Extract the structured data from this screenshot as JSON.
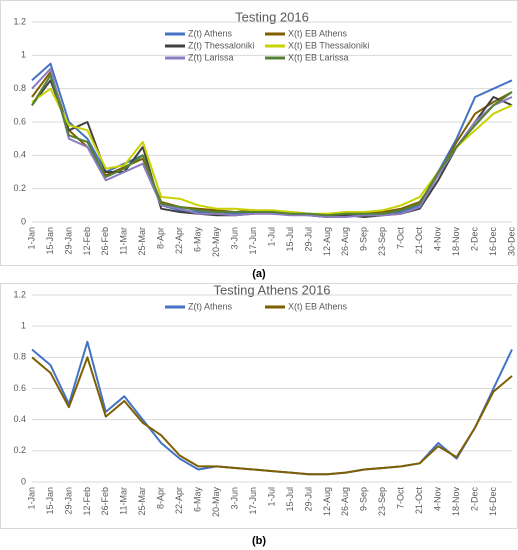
{
  "chart_data": [
    {
      "type": "line",
      "title": "Testing 2016",
      "caption": "(a)",
      "categories": [
        "1-Jan",
        "15-Jan",
        "29-Jan",
        "12-Feb",
        "26-Feb",
        "11-Mar",
        "25-Mar",
        "8-Apr",
        "22-Apr",
        "6-May",
        "20-May",
        "3-Jun",
        "17-Jun",
        "1-Jul",
        "15-Jul",
        "29-Jul",
        "12-Aug",
        "26-Aug",
        "9-Sep",
        "23-Sep",
        "7-Oct",
        "21-Oct",
        "4-Nov",
        "18-Nov",
        "2-Dec",
        "16-Dec",
        "30-Dec"
      ],
      "series": [
        {
          "name": "Z(t) Athens",
          "color": "#4472c4",
          "values": [
            0.85,
            0.95,
            0.6,
            0.5,
            0.3,
            0.35,
            0.4,
            0.1,
            0.07,
            0.06,
            0.05,
            0.05,
            0.06,
            0.05,
            0.05,
            0.04,
            0.03,
            0.04,
            0.04,
            0.05,
            0.06,
            0.1,
            0.3,
            0.5,
            0.75,
            0.8,
            0.85
          ]
        },
        {
          "name": "X(t) EB Athens",
          "color": "#7f5f00",
          "values": [
            0.75,
            0.9,
            0.55,
            0.45,
            0.28,
            0.33,
            0.38,
            0.12,
            0.09,
            0.08,
            0.07,
            0.06,
            0.07,
            0.06,
            0.06,
            0.05,
            0.04,
            0.05,
            0.05,
            0.06,
            0.08,
            0.12,
            0.28,
            0.48,
            0.65,
            0.72,
            0.78
          ]
        },
        {
          "name": "Z(t) Thessaloniki",
          "color": "#404040",
          "values": [
            0.7,
            0.85,
            0.55,
            0.6,
            0.3,
            0.3,
            0.45,
            0.08,
            0.06,
            0.05,
            0.04,
            0.04,
            0.05,
            0.06,
            0.05,
            0.04,
            0.03,
            0.04,
            0.03,
            0.04,
            0.05,
            0.08,
            0.25,
            0.45,
            0.6,
            0.75,
            0.7
          ]
        },
        {
          "name": "X(t) EB Thessaloniki",
          "color": "#c9d200",
          "values": [
            0.72,
            0.8,
            0.58,
            0.55,
            0.32,
            0.34,
            0.48,
            0.15,
            0.14,
            0.1,
            0.08,
            0.08,
            0.07,
            0.07,
            0.06,
            0.05,
            0.05,
            0.06,
            0.06,
            0.07,
            0.1,
            0.15,
            0.3,
            0.45,
            0.55,
            0.65,
            0.7
          ]
        },
        {
          "name": "Z(t) Larissa",
          "color": "#8e7cc3",
          "values": [
            0.8,
            0.92,
            0.5,
            0.45,
            0.25,
            0.3,
            0.35,
            0.1,
            0.08,
            0.05,
            0.05,
            0.04,
            0.05,
            0.05,
            0.04,
            0.04,
            0.03,
            0.03,
            0.04,
            0.04,
            0.05,
            0.09,
            0.28,
            0.45,
            0.6,
            0.7,
            0.75
          ]
        },
        {
          "name": "X(t) EB Larissa",
          "color": "#548235",
          "values": [
            0.7,
            0.88,
            0.52,
            0.48,
            0.27,
            0.32,
            0.4,
            0.11,
            0.09,
            0.07,
            0.06,
            0.06,
            0.06,
            0.06,
            0.05,
            0.05,
            0.04,
            0.05,
            0.05,
            0.05,
            0.07,
            0.11,
            0.3,
            0.45,
            0.58,
            0.7,
            0.78
          ]
        }
      ],
      "ylim": [
        0,
        1.2
      ],
      "yticks": [
        0,
        0.2,
        0.4,
        0.6,
        0.8,
        1,
        1.2
      ],
      "grid": true
    },
    {
      "type": "line",
      "title": "Testing Athens 2016",
      "caption": "(b)",
      "categories": [
        "1-Jan",
        "15-Jan",
        "29-Jan",
        "12-Feb",
        "26-Feb",
        "11-Mar",
        "25-Mar",
        "8-Apr",
        "22-Apr",
        "6-May",
        "20-May",
        "3-Jun",
        "17-Jun",
        "1-Jul",
        "15-Jul",
        "29-Jul",
        "12-Aug",
        "26-Aug",
        "9-Sep",
        "23-Sep",
        "7-Oct",
        "21-Oct",
        "4-Nov",
        "18-Nov",
        "2-Dec",
        "16-Dec",
        null
      ],
      "series": [
        {
          "name": "Z(t) Athens",
          "color": "#4472c4",
          "values": [
            0.85,
            0.75,
            0.5,
            0.9,
            0.45,
            0.55,
            0.4,
            0.25,
            0.15,
            0.08,
            0.1,
            0.09,
            0.08,
            0.07,
            0.06,
            0.05,
            0.05,
            0.06,
            0.08,
            0.09,
            0.1,
            0.12,
            0.25,
            0.15,
            0.35,
            0.6,
            0.85
          ]
        },
        {
          "name": "X(t) EB Athens",
          "color": "#7f5f00",
          "values": [
            0.8,
            0.7,
            0.48,
            0.8,
            0.42,
            0.52,
            0.38,
            0.3,
            0.17,
            0.1,
            0.1,
            0.09,
            0.08,
            0.07,
            0.06,
            0.05,
            0.05,
            0.06,
            0.08,
            0.09,
            0.1,
            0.12,
            0.23,
            0.16,
            0.35,
            0.58,
            0.68
          ]
        }
      ],
      "ylim": [
        0,
        1.2
      ],
      "yticks": [
        0,
        0.2,
        0.4,
        0.6,
        0.8,
        1,
        1.2
      ],
      "grid": true
    }
  ]
}
